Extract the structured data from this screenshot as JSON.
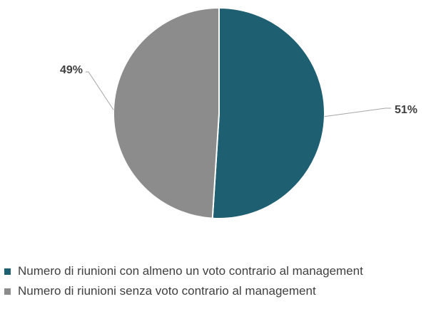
{
  "chart_data": {
    "type": "pie",
    "title": "",
    "slices": [
      {
        "label": "Numero di riunioni con almeno un voto contrario al management",
        "value": 51,
        "display": "51%",
        "color": "#1f5f72"
      },
      {
        "label": "Numero di riunioni senza voto contrario al management",
        "value": 49,
        "display": "49%",
        "color": "#8c8c8c"
      }
    ],
    "legend_position": "bottom",
    "start_angle_deg": 0,
    "direction": "clockwise"
  }
}
